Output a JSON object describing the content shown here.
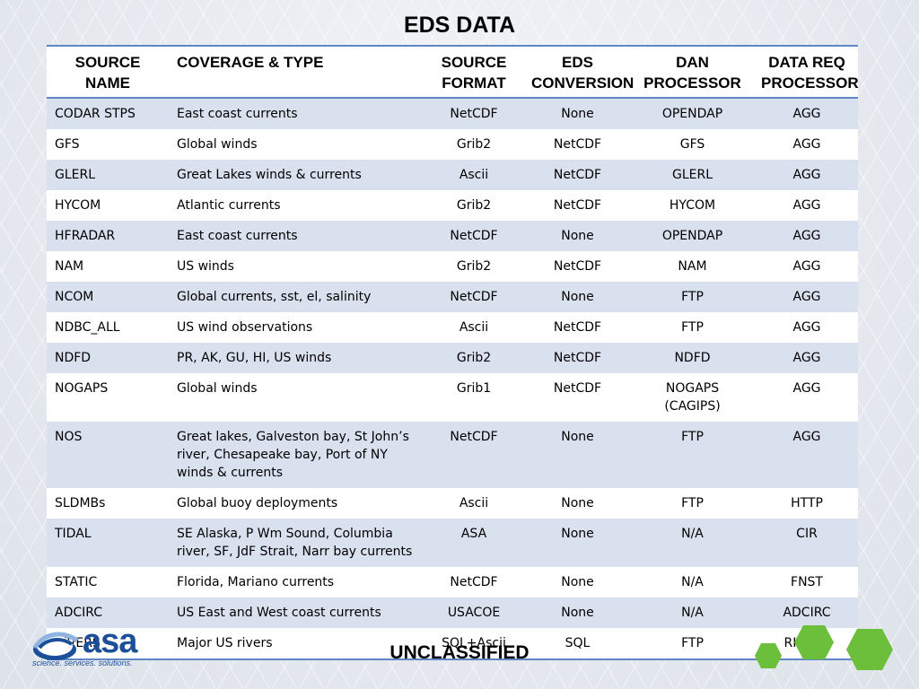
{
  "slide": {
    "title": "EDS DATA",
    "footer": "UNCLASSIFIED",
    "logo": {
      "name": "asa",
      "tagline": "science. services. solutions."
    }
  },
  "table": {
    "headers": [
      "SOURCE\nNAME",
      "COVERAGE & TYPE",
      "SOURCE\nFORMAT",
      "EDS\nCONVERSION",
      "DAN\nPROCESSOR",
      "DATA REQ\nPROCESSOR"
    ],
    "rows": [
      [
        "CODAR STPS",
        "East coast currents",
        "NetCDF",
        "None",
        "OPENDAP",
        "AGG"
      ],
      [
        "GFS",
        "Global winds",
        "Grib2",
        "NetCDF",
        "GFS",
        "AGG"
      ],
      [
        "GLERL",
        "Great Lakes winds & currents",
        "Ascii",
        "NetCDF",
        "GLERL",
        "AGG"
      ],
      [
        "HYCOM",
        "Atlantic currents",
        "Grib2",
        "NetCDF",
        "HYCOM",
        "AGG"
      ],
      [
        "HFRADAR",
        "East coast currents",
        "NetCDF",
        "None",
        "OPENDAP",
        "AGG"
      ],
      [
        "NAM",
        "US winds",
        "Grib2",
        "NetCDF",
        "NAM",
        "AGG"
      ],
      [
        "NCOM",
        "Global currents, sst, el, salinity",
        "NetCDF",
        "None",
        "FTP",
        "AGG"
      ],
      [
        "NDBC_ALL",
        "US wind observations",
        "Ascii",
        "NetCDF",
        "FTP",
        "AGG"
      ],
      [
        "NDFD",
        "PR, AK, GU, HI, US winds",
        "Grib2",
        "NetCDF",
        "NDFD",
        "AGG"
      ],
      [
        "NOGAPS",
        "Global winds",
        "Grib1",
        "NetCDF",
        "NOGAPS\n(CAGIPS)",
        "AGG"
      ],
      [
        "NOS",
        "Great lakes, Galveston bay, St John’s river, Chesapeake bay, Port of NY winds & currents",
        "NetCDF",
        "None",
        "FTP",
        "AGG"
      ],
      [
        "SLDMBs",
        "Global buoy deployments",
        "Ascii",
        "None",
        "FTP",
        "HTTP"
      ],
      [
        "TIDAL",
        "SE Alaska, P Wm Sound, Columbia river, SF, JdF Strait, Narr bay currents",
        "ASA",
        "None",
        "N/A",
        "CIR"
      ],
      [
        "STATIC",
        "Florida, Mariano currents",
        "NetCDF",
        "None",
        "N/A",
        "FNST"
      ],
      [
        "ADCIRC",
        "US East and West coast currents",
        "USACOE",
        "None",
        "N/A",
        "ADCIRC"
      ],
      [
        "RIVERS",
        "Major US rivers",
        "SQL+Ascii",
        "SQL",
        "FTP",
        "RIVERS"
      ]
    ]
  },
  "colors": {
    "header_rule": "#5e86c4",
    "row_band": "#d9e1ee",
    "logo_blue": "#1b4f9a",
    "hex_green": "#6cbf3a"
  }
}
